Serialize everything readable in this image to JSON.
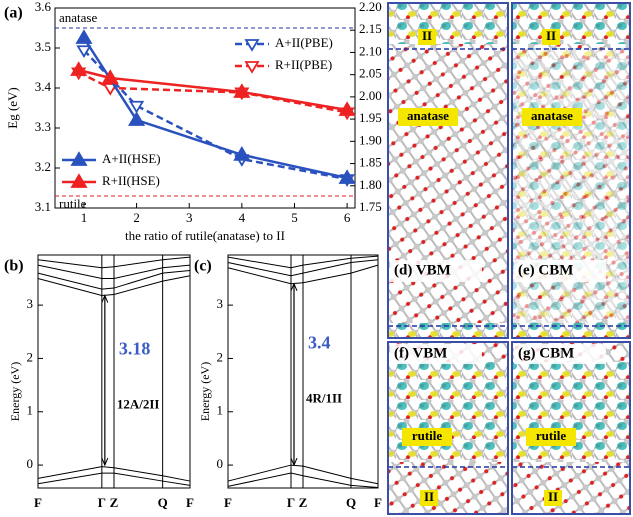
{
  "chart_data": [
    {
      "type": "line",
      "label": "(a)",
      "xlabel": "the ratio of rutile(anatase) to II",
      "ylabel": "Eg (eV)",
      "xlim": [
        0.45,
        6.15
      ],
      "xticks": [
        1,
        2,
        3,
        4,
        5,
        6
      ],
      "ylim": [
        3.1,
        3.6
      ],
      "yticks": [
        3.1,
        3.2,
        3.3,
        3.4,
        3.5,
        3.6
      ],
      "y2lim": [
        1.75,
        2.2
      ],
      "y2ticks": [
        1.75,
        {
          "value": 1.8,
          "label": "1.80"
        },
        1.85,
        {
          "value": 1.9,
          "label": "1.90"
        },
        1.95,
        {
          "value": 2.0,
          "label": "2.00"
        },
        2.05,
        {
          "value": 2.1,
          "label": "2.10"
        },
        2.15,
        {
          "value": 2.2,
          "label": "2.20"
        }
      ],
      "reference_lines": [
        {
          "label": "anatase",
          "value": 3.55,
          "color": "#2233aa"
        },
        {
          "label": "rutile",
          "value": 3.13,
          "color": "#dd2222"
        }
      ],
      "series": [
        {
          "name": "A+II(PBE)",
          "color": "#2a52be",
          "axis": "y2",
          "marker": "open",
          "dashed": true,
          "legend": "upper right",
          "x": [
            1,
            2,
            4,
            6
          ],
          "values": [
            2.105,
            1.98,
            1.86,
            1.815
          ]
        },
        {
          "name": "R+II(PBE)",
          "color": "#ee2222",
          "axis": "y2",
          "marker": "open",
          "dashed": true,
          "legend": "upper right",
          "x": [
            0.9,
            1.5,
            4,
            6
          ],
          "values": [
            2.055,
            2.02,
            2.01,
            1.965
          ]
        },
        {
          "name": "A+II(HSE)",
          "color": "#2a52be",
          "marker": "filled",
          "dashed": false,
          "legend": "lower left",
          "x": [
            1,
            2,
            4,
            6
          ],
          "values": [
            3.525,
            3.32,
            3.233,
            3.175
          ]
        },
        {
          "name": "R+II(HSE)",
          "color": "#ee2222",
          "marker": "filled",
          "dashed": false,
          "legend": "lower left",
          "x": [
            0.9,
            1.5,
            4,
            6
          ],
          "values": [
            3.445,
            3.425,
            3.39,
            3.345
          ]
        }
      ]
    },
    {
      "type": "bands",
      "label": "(b)",
      "ylabel": "Energy (eV)",
      "annotation": "12A/2II",
      "gap": 3.18,
      "gap_color": "#3b5cc4",
      "categories": [
        "F",
        "Γ",
        "Z",
        "Q",
        "F"
      ],
      "x": [
        0,
        0.42,
        0.5,
        0.82,
        1
      ],
      "xlim": [
        0,
        1
      ],
      "ylim": [
        -0.43,
        3.94
      ],
      "yticks": [
        0,
        1,
        2,
        3
      ],
      "series": [
        {
          "color": "#000",
          "values": [
            -0.25,
            -0.03,
            -0.05,
            -0.2,
            -0.3
          ]
        },
        {
          "color": "#000",
          "values": [
            -0.35,
            -0.15,
            -0.15,
            -0.3,
            -0.38
          ]
        },
        {
          "color": "#000",
          "values": [
            3.5,
            3.18,
            3.2,
            3.45,
            3.55
          ]
        },
        {
          "color": "#000",
          "values": [
            3.6,
            3.3,
            3.32,
            3.6,
            3.65
          ]
        },
        {
          "color": "#000",
          "values": [
            3.75,
            3.5,
            3.5,
            3.7,
            3.75
          ]
        },
        {
          "color": "#000",
          "values": [
            3.85,
            3.7,
            3.72,
            3.85,
            3.9
          ]
        }
      ]
    },
    {
      "type": "bands",
      "label": "(c)",
      "ylabel": "Energy (eV)",
      "annotation": "4R/1II",
      "gap": 3.4,
      "gap_color": "#3b5cc4",
      "categories": [
        "F",
        "Γ",
        "Z",
        "Q",
        "F"
      ],
      "x": [
        0,
        0.42,
        0.5,
        0.82,
        1
      ],
      "xlim": [
        0,
        1
      ],
      "ylim": [
        -0.43,
        3.94
      ],
      "yticks": [
        0,
        1,
        2,
        3
      ],
      "series": [
        {
          "color": "#000",
          "values": [
            -0.3,
            0.0,
            -0.02,
            -0.25,
            -0.35
          ]
        },
        {
          "color": "#000",
          "values": [
            -0.4,
            -0.15,
            -0.2,
            -0.38,
            -0.42
          ]
        },
        {
          "color": "#000",
          "values": [
            3.7,
            3.4,
            3.42,
            3.6,
            3.75
          ]
        },
        {
          "color": "#000",
          "values": [
            3.8,
            3.55,
            3.6,
            3.8,
            3.85
          ]
        },
        {
          "color": "#000",
          "values": [
            3.9,
            3.7,
            3.75,
            3.88,
            3.92
          ]
        }
      ]
    }
  ],
  "images": [
    {
      "label": "(d) VBM",
      "tags": [
        "II",
        "anatase"
      ]
    },
    {
      "label": "(e) CBM",
      "tags": [
        "II",
        "anatase"
      ]
    },
    {
      "label": "(f) VBM",
      "tags": [
        "rutile",
        "II"
      ]
    },
    {
      "label": "(g) CBM",
      "tags": [
        "rutile",
        "II"
      ]
    }
  ]
}
